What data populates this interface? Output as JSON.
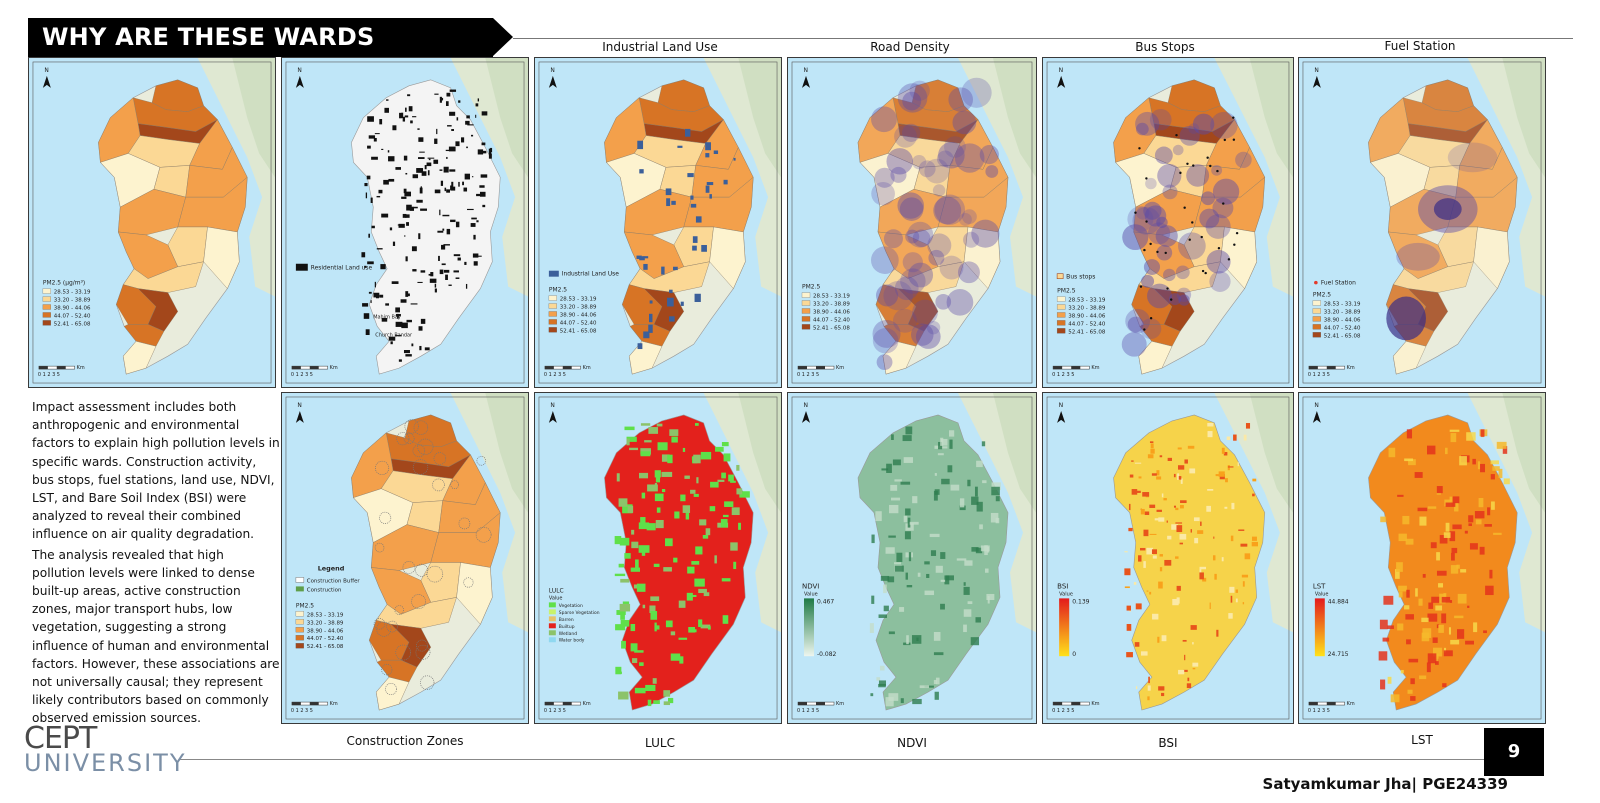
{
  "header": {
    "title": "WHY ARE THESE WARDS POLLUTED?"
  },
  "description": {
    "paragraph1": "Impact assessment includes both anthropogenic and environmental factors to explain high pollution levels in specific wards. Construction activity, bus stops, fuel stations, land use, NDVI, LST, and Bare Soil Index (BSI) were analyzed to reveal their combined influence on air quality degradation.",
    "paragraph2": "The analysis revealed that high pollution levels were linked to dense built-up areas, active construction zones, major transport hubs, low vegetation, suggesting a strong influence of human and environmental factors. However, these associations are not universally causal; they represent likely contributors based on commonly observed emission sources."
  },
  "pm_legend": {
    "title_unit": "PM2.5 (µg/m³)",
    "title": "PM2.5",
    "classes": [
      {
        "label": "28.53 - 33.19",
        "color": "#fdf3cf"
      },
      {
        "label": "33.20 - 38.89",
        "color": "#fbd895"
      },
      {
        "label": "38.90 - 44.06",
        "color": "#f3a04b"
      },
      {
        "label": "44.07 - 52.40",
        "color": "#d77425"
      },
      {
        "label": "52.41 - 65.08",
        "color": "#a3471b"
      }
    ]
  },
  "panels": {
    "pm25": {
      "caption": ""
    },
    "residential": {
      "caption": "",
      "legend_label": "Residential Land use",
      "place1": "Mahim Bay",
      "place2": "Church Bandar"
    },
    "industrial": {
      "caption": "Industrial Land Use",
      "legend_label": "Industrial Land Use"
    },
    "road": {
      "caption": "Road Density"
    },
    "bus": {
      "caption": "Bus Stops",
      "legend_label": "Bus stops"
    },
    "fuel": {
      "caption": "Fuel Station",
      "legend_label": "Fuel Station"
    },
    "construction": {
      "caption": "Construction Zones",
      "legend_title": "Legend",
      "buffer_label": "Construction Buffer",
      "construction_label": "Construction"
    },
    "lulc": {
      "caption": "LULC",
      "legend_title": "LULC",
      "value_label": "Value",
      "classes": [
        {
          "label": "Vegetation",
          "color": "#5fe04a"
        },
        {
          "label": "Sparse Vegetation",
          "color": "#c8f26b"
        },
        {
          "label": "Barren",
          "color": "#e6c36a"
        },
        {
          "label": "Builtup",
          "color": "#e3211c"
        },
        {
          "label": "Wetland",
          "color": "#8cc36a"
        },
        {
          "label": "Water body",
          "color": "#8fd8f0"
        }
      ]
    },
    "ndvi": {
      "caption": "NDVI",
      "legend_title": "NDVI",
      "value_label": "Value",
      "max": "0.467",
      "min": "-0.082"
    },
    "bsi": {
      "caption": "BSI",
      "legend_title": "BSI",
      "value_label": "Value",
      "max": "0.139",
      "min": "0"
    },
    "lst": {
      "caption": "LST",
      "legend_title": "LST",
      "value_label": "Value",
      "max": "44.884",
      "min": "24.715"
    }
  },
  "map_common": {
    "north": "N",
    "scale": "0 1 2   3     5",
    "km": "Km"
  },
  "footer": {
    "logo_top": "CEPT",
    "logo_bottom": "UNIVERSITY",
    "author": "Satyamkumar Jha| PGE24339",
    "page_number": "9"
  },
  "colors": {
    "water": "#bfe6f8",
    "land": "#e9ecdc",
    "point": "#e23b2c"
  }
}
